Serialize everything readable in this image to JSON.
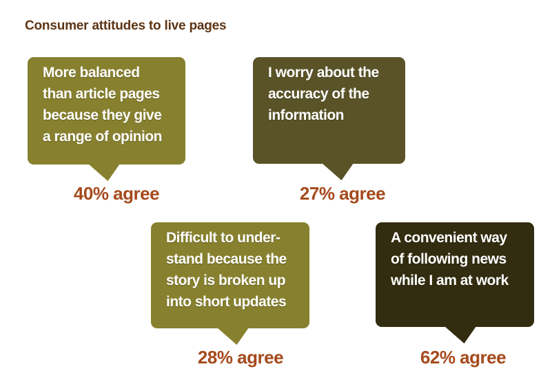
{
  "title": "Consumer attitudes to live pages",
  "colors": {
    "background": "#FFFFFF",
    "title_text": "#5D3414",
    "bubble_olive": "#87802E",
    "bubble_dark_olive": "#5A5328",
    "bubble_darkest": "#322C10",
    "bubble_text": "#FFFFFF",
    "agree_text": "#A54A1C"
  },
  "bubbles": [
    {
      "quote": "More balanced\nthan article pages\nbecause they give\na range of opinion",
      "agree_label": "40% agree",
      "value": 40,
      "color": "#87802E"
    },
    {
      "quote": "I worry about the\naccuracy of the\ninformation",
      "agree_label": "27% agree",
      "value": 27,
      "color": "#5A5328"
    },
    {
      "quote": "Difficult to under-\nstand because the\nstory is broken up\ninto short updates",
      "agree_label": "28% agree",
      "value": 28,
      "color": "#87802E"
    },
    {
      "quote": "A convenient way\nof following news\nwhile I am at work",
      "agree_label": "62% agree",
      "value": 62,
      "color": "#322C10"
    }
  ],
  "chart_data": {
    "type": "table",
    "title": "Consumer attitudes to live pages",
    "categories": [
      "More balanced than article pages because they give a range of opinion",
      "I worry about the accuracy of the information",
      "Difficult to understand because the story is broken up into short updates",
      "A convenient way of following news while I am at work"
    ],
    "values": [
      40,
      27,
      28,
      62
    ],
    "unit": "% agree",
    "legend": false,
    "grid": false
  }
}
